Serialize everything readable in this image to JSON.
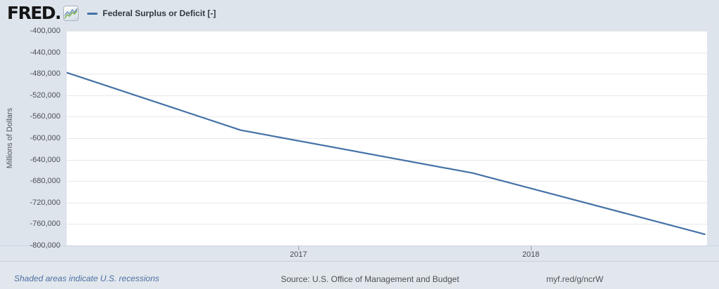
{
  "header": {
    "logo_text": "FRED.",
    "legend": {
      "label": "Federal Surplus or Deficit [-]"
    }
  },
  "chart_data": {
    "type": "line",
    "title": "Federal Surplus or Deficit [-]",
    "xlabel": "",
    "ylabel": "Millions of Dollars",
    "grid": "horizontal",
    "legend_position": "top-left",
    "x_domain": [
      2016.0,
      2018.76
    ],
    "y_domain": [
      -800000,
      -400000
    ],
    "y_ticks": [
      {
        "value": -400000,
        "label": "-400,000"
      },
      {
        "value": -440000,
        "label": "-440,000"
      },
      {
        "value": -480000,
        "label": "-480,000"
      },
      {
        "value": -520000,
        "label": "-520,000"
      },
      {
        "value": -560000,
        "label": "-560,000"
      },
      {
        "value": -600000,
        "label": "-600,000"
      },
      {
        "value": -640000,
        "label": "-640,000"
      },
      {
        "value": -680000,
        "label": "-680,000"
      },
      {
        "value": -720000,
        "label": "-720,000"
      },
      {
        "value": -760000,
        "label": "-760,000"
      },
      {
        "value": -800000,
        "label": "-800,000"
      }
    ],
    "x_ticks": [
      {
        "value": 2017,
        "label": "2017"
      },
      {
        "value": 2018,
        "label": "2018"
      }
    ],
    "series": [
      {
        "name": "Federal Surplus or Deficit [-]",
        "color": "#4572a7",
        "points": [
          {
            "x": 2015.75,
            "value": -442000
          },
          {
            "x": 2016.75,
            "value": -585000
          },
          {
            "x": 2017.75,
            "value": -665000
          },
          {
            "x": 2018.75,
            "value": -779000
          }
        ]
      }
    ]
  },
  "footer": {
    "recession_note": "Shaded areas indicate U.S. recessions",
    "source": "Source: U.S. Office of Management and Budget",
    "permalink": "myf.red/g/ncrW"
  },
  "colors": {
    "background": "#dde4ec",
    "plot_background": "#ffffff",
    "gridline": "#e8e8e8",
    "line": "#4572a7",
    "tick": "#929ca8"
  }
}
